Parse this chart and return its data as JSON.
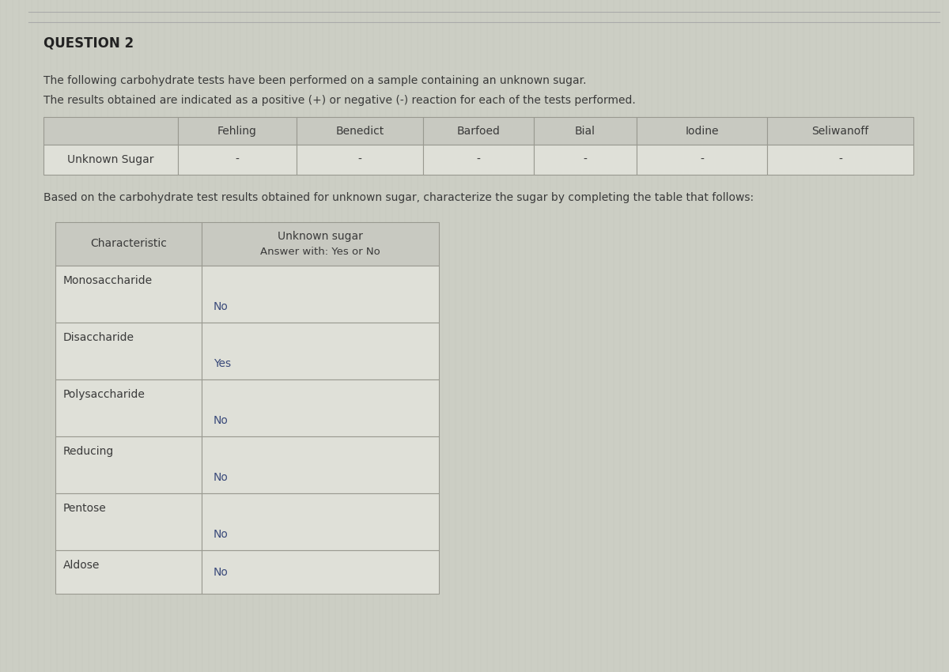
{
  "title": "QUESTION 2",
  "paragraph1": "The following carbohydrate tests have been performed on a sample containing an unknown sugar.",
  "paragraph2": "The results obtained are indicated as a positive (+) or negative (-) reaction for each of the tests performed.",
  "table1_headers": [
    "",
    "Fehling",
    "Benedict",
    "Barfoed",
    "Bial",
    "Iodine",
    "Seliwanoff"
  ],
  "table1_row": [
    "Unknown Sugar",
    "-",
    "-",
    "-",
    "-",
    "-",
    "-"
  ],
  "paragraph3": "Based on the carbohydrate test results obtained for unknown sugar, characterize the sugar by completing the table that follows:",
  "table2_col1_header": "Characteristic",
  "table2_col2_header_line1": "Unknown sugar",
  "table2_col2_header_line2": "Answer with: Yes or No",
  "table2_rows": [
    [
      "Monosaccharide",
      "No"
    ],
    [
      "Disaccharide",
      "Yes"
    ],
    [
      "Polysaccharide",
      "No"
    ],
    [
      "Reducing",
      "No"
    ],
    [
      "Pentose",
      "No"
    ],
    [
      "Aldose",
      "No"
    ]
  ],
  "bg_color": "#cccec4",
  "table_cell_bg": "#dfe0d8",
  "table_header_bg": "#c8c9c1",
  "text_color": "#3a3a3a",
  "border_color": "#999990",
  "title_color": "#222222",
  "answer_color": "#3a4a7a",
  "line_color": "#aaaaaa"
}
